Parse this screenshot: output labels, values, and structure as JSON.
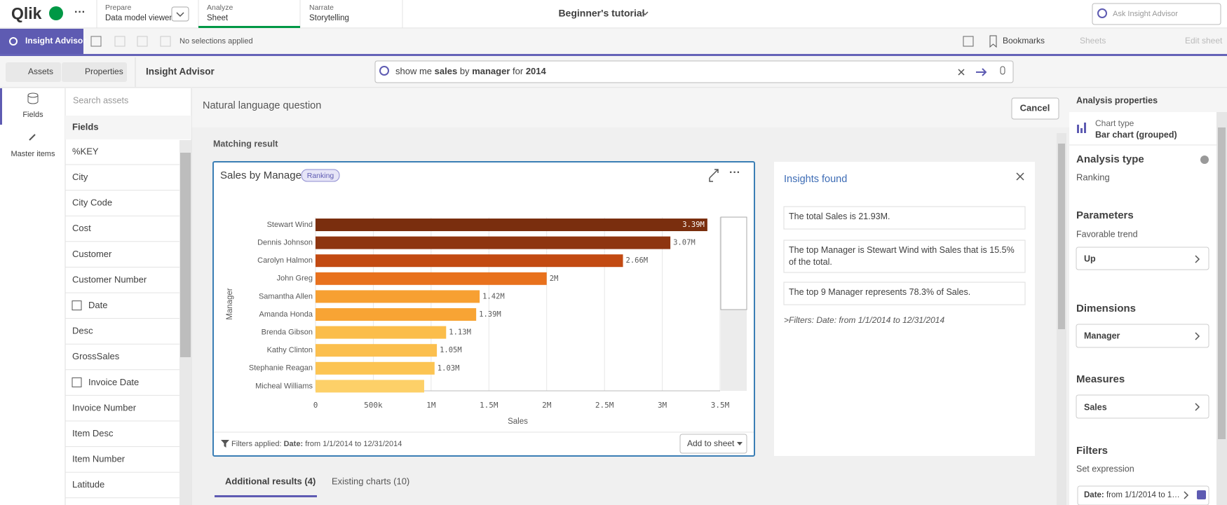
{
  "top_bar": {
    "logo": "Qlik",
    "tabs": [
      {
        "label": "Prepare",
        "sub": "Data model viewer"
      },
      {
        "label": "Analyze",
        "sub": "Sheet"
      },
      {
        "label": "Narrate",
        "sub": "Storytelling"
      }
    ],
    "app_title": "Beginner's tutorial",
    "search_placeholder": "Ask Insight Advisor"
  },
  "toolbar": {
    "mode": "Insight Advisor",
    "selections": "No selections applied",
    "bookmarks": "Bookmarks",
    "sheets": "Sheets",
    "edit_sheet": "Edit sheet"
  },
  "subbar": {
    "assets": "Assets",
    "properties": "Properties",
    "title": "Insight Advisor",
    "query_parts": [
      "show me",
      "sales",
      "by",
      "manager",
      "for",
      "2014"
    ]
  },
  "left_nav": [
    "Fields",
    "Master items"
  ],
  "fields_panel": {
    "search": "Search assets",
    "heading": "Fields",
    "items": [
      "%KEY",
      "City",
      "City Code",
      "Cost",
      "Customer",
      "Customer Number",
      "Date",
      "Desc",
      "GrossSales",
      "Invoice Date",
      "Invoice Number",
      "Item Desc",
      "Item Number",
      "Latitude"
    ]
  },
  "main": {
    "heading": "Natural language question",
    "cancel": "Cancel",
    "matching": "Matching result",
    "filters_prefix": "Filters applied:",
    "filters_label": "Date:",
    "filters_value": "from 1/1/2014 to 12/31/2014",
    "add_to_sheet": "Add to sheet",
    "tabs": [
      "Additional results (4)",
      "Existing charts (10)"
    ]
  },
  "insights": {
    "title": "Insights found",
    "items": [
      "The total Sales is 21.93M.",
      "The top Manager is Stewart Wind with Sales that is 15.5% of the total.",
      "The top 9 Manager represents 78.3% of Sales."
    ],
    "filters_note": ">Filters: Date: from 1/1/2014 to 12/31/2014"
  },
  "properties": {
    "title": "Analysis properties",
    "chart_type_label": "Chart type",
    "chart_type": "Bar chart (grouped)",
    "analysis_type_label": "Analysis type",
    "analysis_type": "Ranking",
    "parameters": "Parameters",
    "favorable_trend": "Favorable trend",
    "trend": "Up",
    "dimensions": "Dimensions",
    "dimension": "Manager",
    "measures": "Measures",
    "measure": "Sales",
    "filters": "Filters",
    "set_expression": "Set expression",
    "filter_label": "Date:",
    "filter_value": "from 1/1/2014 to 1…"
  },
  "chart_data": {
    "type": "bar",
    "orientation": "horizontal",
    "title": "Sales by Manager",
    "badge": "Ranking",
    "x_label": "Sales",
    "y_label": "Manager",
    "categories": [
      "Stewart Wind",
      "Dennis Johnson",
      "Carolyn Halmon",
      "John Greg",
      "Samantha Allen",
      "Amanda Honda",
      "Brenda Gibson",
      "Kathy Clinton",
      "Stephanie Reagan",
      "Micheal Williams"
    ],
    "values": [
      3390000,
      3070000,
      2660000,
      2000000,
      1420000,
      1390000,
      1130000,
      1050000,
      1030000,
      940000
    ],
    "value_labels": [
      "3.39M",
      "3.07M",
      "2.66M",
      "2M",
      "1.42M",
      "1.39M",
      "1.13M",
      "1.05M",
      "1.03M",
      null
    ],
    "colors": [
      "#7a2e0e",
      "#8e3510",
      "#c24a12",
      "#e8711d",
      "#f7a032",
      "#f8a434",
      "#fbbd4a",
      "#fbbf4e",
      "#fcc452",
      "#fdd068"
    ],
    "xlim": [
      0,
      3500000
    ],
    "xticks": [
      0,
      {
        "value": 500000,
        "label": "500k"
      },
      {
        "value": 1000000,
        "label": "1M"
      },
      {
        "value": 1500000,
        "label": "1.5M"
      },
      {
        "value": 2000000,
        "label": "2M"
      },
      {
        "value": 2500000,
        "label": "2.5M"
      },
      {
        "value": 3000000,
        "label": "3M"
      },
      {
        "value": 3500000,
        "label": "3.5M"
      }
    ],
    "grid": true
  }
}
